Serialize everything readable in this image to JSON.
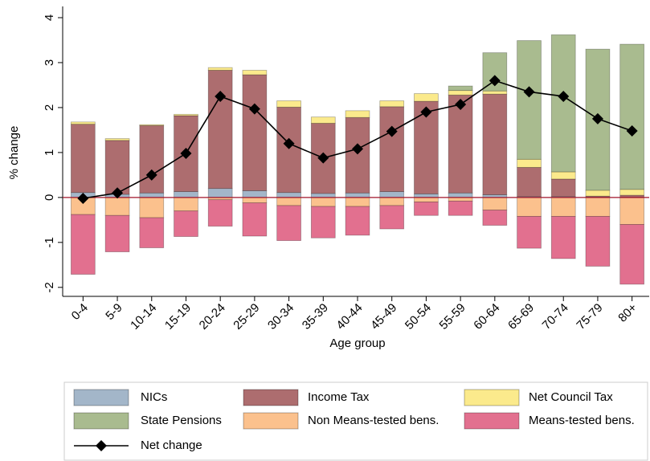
{
  "chart_data": {
    "type": "bar",
    "y_label": "% change",
    "x_label": "Age group",
    "categories": [
      "0-4",
      "5-9",
      "10-14",
      "15-19",
      "20-24",
      "25-29",
      "30-34",
      "35-39",
      "40-44",
      "45-49",
      "50-54",
      "55-59",
      "60-64",
      "65-69",
      "70-74",
      "75-79",
      "80+"
    ],
    "ylim": [
      -2.2,
      4.25
    ],
    "yticks": [
      -2,
      -1,
      0,
      1,
      2,
      3,
      4
    ],
    "series": [
      {
        "name": "NICs",
        "color": "#a3b6c9",
        "values": [
          0.11,
          0.07,
          0.1,
          0.13,
          0.2,
          0.15,
          0.11,
          0.09,
          0.1,
          0.13,
          0.08,
          0.1,
          0.06,
          0.02,
          0.02,
          0.01,
          0.01
        ]
      },
      {
        "name": "Income Tax",
        "color": "#ad6d6f",
        "values": [
          1.52,
          1.2,
          1.5,
          1.69,
          2.63,
          2.58,
          1.9,
          1.56,
          1.68,
          1.89,
          2.06,
          2.18,
          2.24,
          0.65,
          0.39,
          0.02,
          0.04
        ]
      },
      {
        "name": "Net Council Tax",
        "color": "#fbea8c",
        "values": [
          0.05,
          0.04,
          0.02,
          0.03,
          0.06,
          0.1,
          0.14,
          0.14,
          0.15,
          0.13,
          0.17,
          0.1,
          0.07,
          0.18,
          0.16,
          0.13,
          0.13
        ]
      },
      {
        "name": "State Pensions",
        "color": "#a9bb8f",
        "values": [
          0,
          0,
          0,
          0,
          0,
          0,
          0,
          0,
          0,
          0,
          0,
          0.1,
          0.85,
          2.64,
          3.05,
          3.14,
          3.23
        ]
      },
      {
        "name": "Non Means-tested bens.",
        "color": "#fbc18d",
        "values": [
          -0.38,
          -0.4,
          -0.45,
          -0.3,
          -0.05,
          -0.12,
          -0.18,
          -0.2,
          -0.2,
          -0.18,
          -0.1,
          -0.08,
          -0.28,
          -0.42,
          -0.42,
          -0.42,
          -0.6
        ]
      },
      {
        "name": "Means-tested bens.",
        "color": "#e2708f",
        "values": [
          -1.33,
          -0.81,
          -0.67,
          -0.57,
          -0.59,
          -0.74,
          -0.78,
          -0.7,
          -0.64,
          -0.52,
          -0.3,
          -0.32,
          -0.34,
          -0.71,
          -0.94,
          -1.11,
          -1.33
        ]
      },
      {
        "name": "Net change",
        "color": "#000000",
        "type": "line",
        "values": [
          -0.02,
          0.1,
          0.5,
          0.98,
          2.25,
          1.97,
          1.2,
          0.88,
          1.08,
          1.47,
          1.9,
          2.07,
          2.6,
          2.35,
          2.25,
          1.75,
          1.48
        ]
      }
    ]
  }
}
